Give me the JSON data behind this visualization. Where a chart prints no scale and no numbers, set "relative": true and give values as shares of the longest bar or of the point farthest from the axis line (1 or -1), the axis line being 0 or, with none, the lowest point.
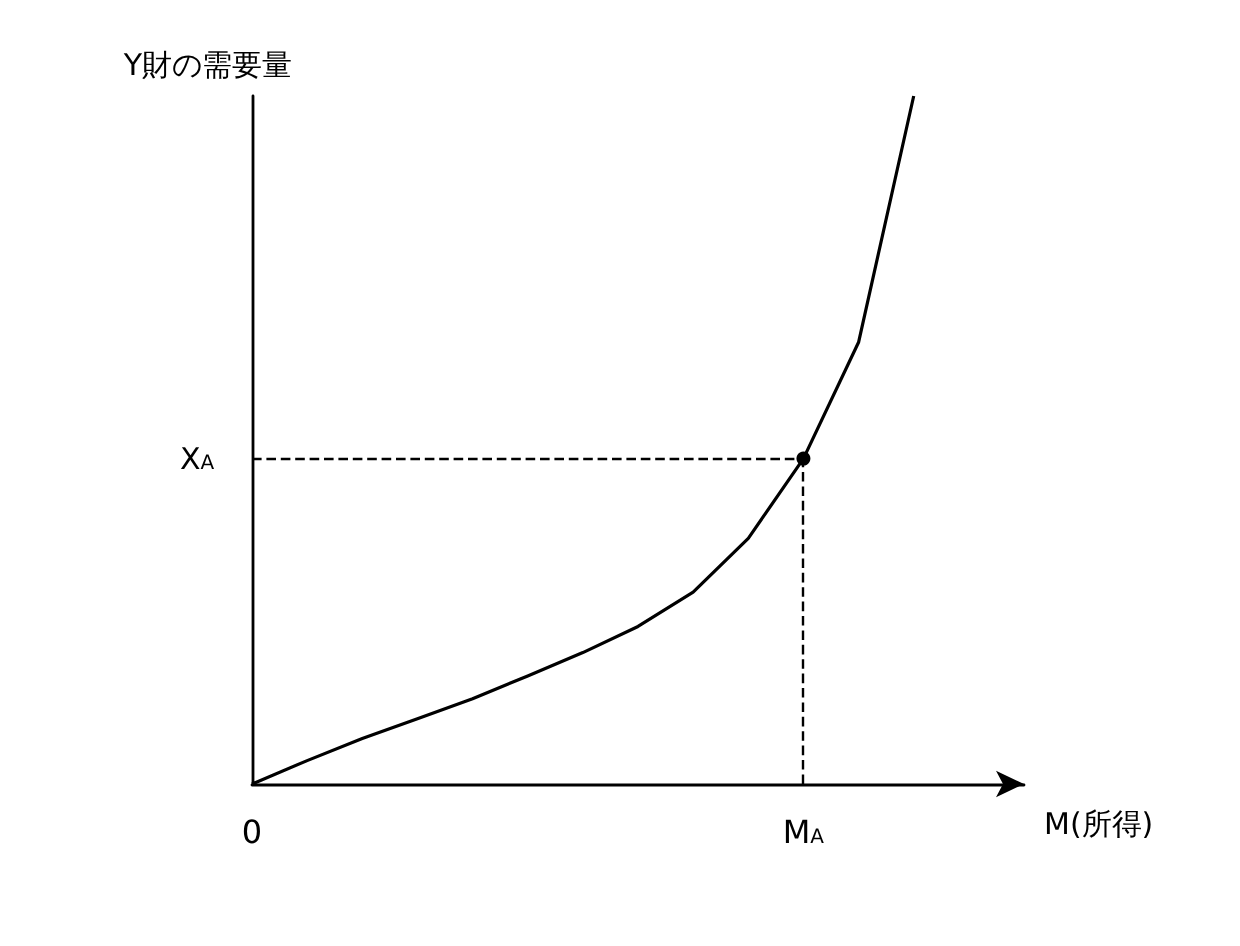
{
  "chart_data": {
    "type": "line",
    "relative": true,
    "xlabel": "M(所得)",
    "ylabel": "Y財の需要量",
    "categories": [
      "0",
      null,
      null,
      null,
      null,
      null,
      null,
      null,
      null,
      null,
      "M$_{A}$",
      null,
      null,
      null,
      null
    ],
    "series": [
      {
        "color": "#000000",
        "values": [
          0,
          0.034,
          0.066,
          0.095,
          0.124,
          0.157,
          0.191,
          0.229,
          0.279,
          0.357,
          0.473,
          0.642,
          1,
          null,
          null
        ]
      }
    ],
    "ref_lines": [
      {
        "axis": "x",
        "value": "M$_{A}$",
        "line_style": "dashed"
      },
      {
        "axis": "y",
        "value": 0.473,
        "label": "X$_{A}$",
        "line_style": "dashed"
      }
    ],
    "marker": "none",
    "grid": false
  }
}
